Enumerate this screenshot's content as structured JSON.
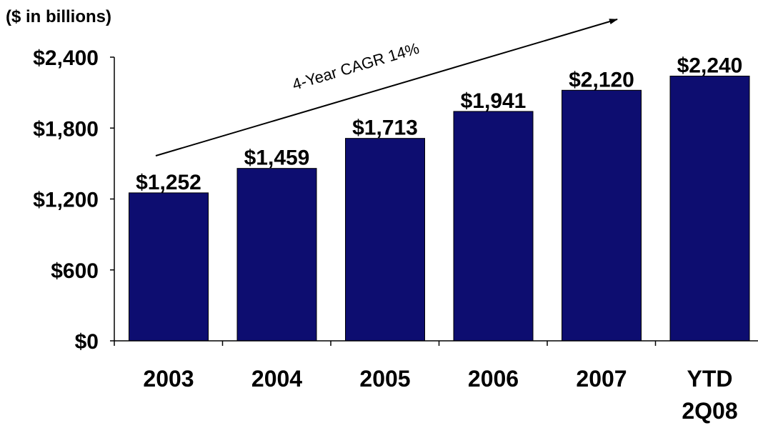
{
  "unit_label": "($ in billions)",
  "chart_data": {
    "type": "bar",
    "categories": [
      "2003",
      "2004",
      "2005",
      "2006",
      "2007",
      "YTD 2Q08"
    ],
    "category_lines": [
      [
        "2003"
      ],
      [
        "2004"
      ],
      [
        "2005"
      ],
      [
        "2006"
      ],
      [
        "2007"
      ],
      [
        "YTD",
        "2Q08"
      ]
    ],
    "values": [
      1252,
      1459,
      1713,
      1941,
      2120,
      2240
    ],
    "value_labels": [
      "$1,252",
      "$1,459",
      "$1,713",
      "$1,941",
      "$2,120",
      "$2,240"
    ],
    "yticks": [
      0,
      600,
      1200,
      1800,
      2400
    ],
    "ytick_labels": [
      "$0",
      "$600",
      "$1,200",
      "$1,800",
      "$2,400"
    ],
    "ylim": [
      0,
      2400
    ],
    "grid": false,
    "legend": "none",
    "bar_color": "#0d0d70",
    "annotation": "4-Year CAGR 14%"
  }
}
